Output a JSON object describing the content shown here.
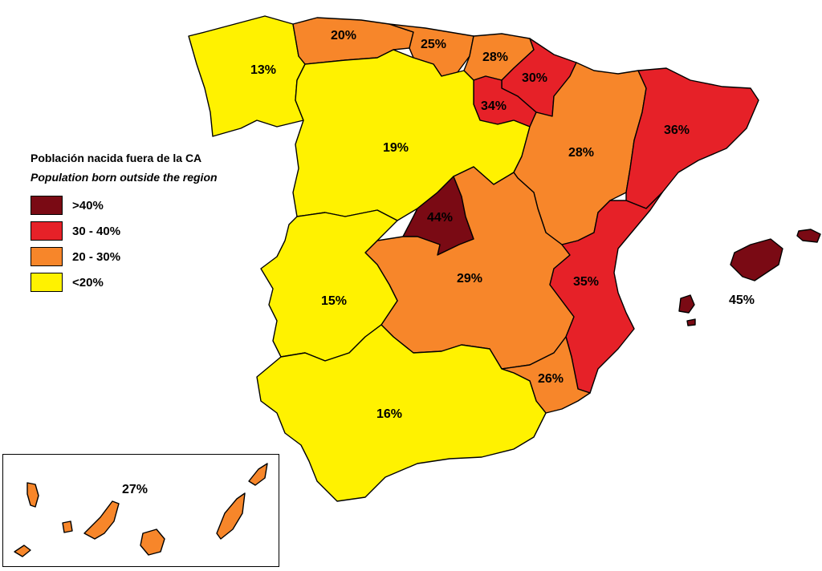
{
  "legend": {
    "title": "Población nacida fuera de la CA",
    "subtitle": "Population born outside the region",
    "items": [
      {
        "label": ">40%",
        "color": "#7a0a14"
      },
      {
        "label": "30 - 40%",
        "color": "#e62128"
      },
      {
        "label": "20 - 30%",
        "color": "#f7862a"
      },
      {
        "label": "<20%",
        "color": "#fff200"
      }
    ]
  },
  "regions": {
    "galicia": {
      "value": "13%",
      "color": "#fff200"
    },
    "asturias": {
      "value": "20%",
      "color": "#f7862a"
    },
    "cantabria": {
      "value": "25%",
      "color": "#f7862a"
    },
    "pais_vasco": {
      "value": "28%",
      "color": "#f7862a"
    },
    "navarra": {
      "value": "30%",
      "color": "#e62128"
    },
    "la_rioja": {
      "value": "34%",
      "color": "#e62128"
    },
    "castilla_leon": {
      "value": "19%",
      "color": "#fff200"
    },
    "aragon": {
      "value": "28%",
      "color": "#f7862a"
    },
    "cataluna": {
      "value": "36%",
      "color": "#e62128"
    },
    "madrid": {
      "value": "44%",
      "color": "#7a0a14"
    },
    "castilla_la_mancha": {
      "value": "29%",
      "color": "#f7862a"
    },
    "extremadura": {
      "value": "15%",
      "color": "#fff200"
    },
    "valencia": {
      "value": "35%",
      "color": "#e62128"
    },
    "baleares": {
      "value": "45%",
      "color": "#7a0a14"
    },
    "murcia": {
      "value": "26%",
      "color": "#f7862a"
    },
    "andalucia": {
      "value": "16%",
      "color": "#fff200"
    },
    "canarias": {
      "value": "27%",
      "color": "#f7862a"
    }
  }
}
